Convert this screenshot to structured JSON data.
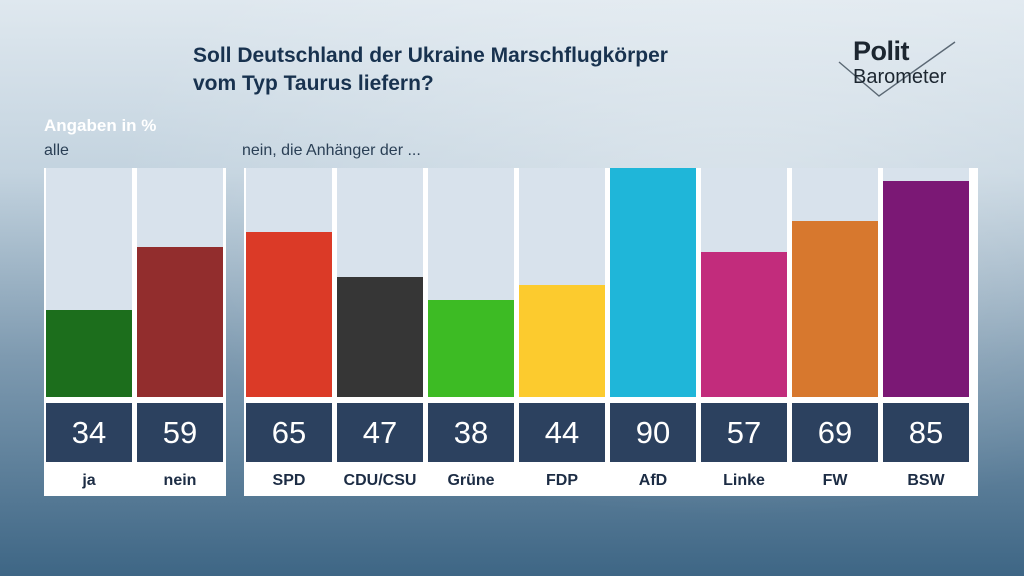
{
  "title_line1": "Soll Deutschland der Ukraine Marschflugkörper",
  "title_line2": "vom Typ Taurus liefern?",
  "logo": {
    "top": "Polit",
    "bottom": "Barometer"
  },
  "unit_label": "Angaben in %",
  "group_all_label": "alle",
  "group_parties_label": "nein, die Anhänger der ...",
  "chart_data": [
    {
      "type": "bar",
      "categories": [
        "ja",
        "nein"
      ],
      "values": [
        34,
        59
      ],
      "colors": [
        "#1c6e1c",
        "#922d2d"
      ],
      "ylim": [
        0,
        90
      ]
    },
    {
      "type": "bar",
      "categories": [
        "SPD",
        "CDU/CSU",
        "Grüne",
        "FDP",
        "AfD",
        "Linke",
        "FW",
        "BSW"
      ],
      "values": [
        65,
        47,
        38,
        44,
        90,
        57,
        69,
        85
      ],
      "colors": [
        "#db3a27",
        "#363636",
        "#3dbb24",
        "#fccb2e",
        "#1fb6d9",
        "#c22c7c",
        "#d7782e",
        "#7b1875"
      ],
      "ylim": [
        0,
        90
      ]
    }
  ]
}
